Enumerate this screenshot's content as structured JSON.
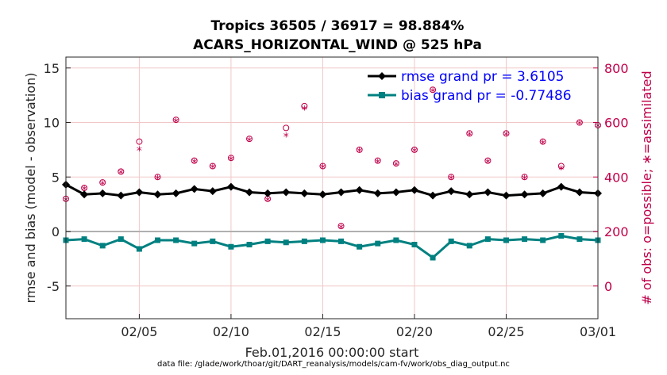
{
  "colors": {
    "rmse": "#000000",
    "bias": "#008080",
    "obs": "#c0004a",
    "legend_text": "#0000ff",
    "zero_line": "#b0b0b0",
    "grid": "#f2c7c7"
  },
  "chart_data": {
    "type": "line",
    "title_line1": "Tropics 36505 / 36917 = 98.884%",
    "title_line2": "ACARS_HORIZONTAL_WIND @ 525 hPa",
    "xlabel": "Feb.01,2016 00:00:00 start",
    "ylabel": "rmse and bias (model - observation)",
    "ylabel_right": "# of obs: o=possible; ∗=assimilated",
    "footnote": "data file: /glade/work/thoar/git/DART_reanalysis/models/cam-fv/work/obs_diag_output.nc",
    "xlim": [
      1,
      30
    ],
    "x_ticks": [
      5,
      10,
      15,
      20,
      25,
      30
    ],
    "x_tick_labels": [
      "02/05",
      "02/10",
      "02/15",
      "02/20",
      "02/25",
      "03/01"
    ],
    "ylim": [
      -8,
      16
    ],
    "y_ticks": [
      -5,
      0,
      5,
      10,
      15
    ],
    "y_tick_labels": [
      "-5",
      "0",
      "5",
      "10",
      "15"
    ],
    "ylim_right": [
      -120,
      840
    ],
    "y_ticks_right": [
      0,
      200,
      400,
      600,
      800
    ],
    "y_tick_labels_right": [
      "0",
      "200",
      "400",
      "600",
      "800"
    ],
    "legend": {
      "rmse": "rmse grand pr = 3.6105",
      "bias": "bias grand pr = -0.77486"
    },
    "series": [
      {
        "name": "rmse",
        "axis": "left",
        "x": [
          1.0,
          2.0,
          3.0,
          4.0,
          5.0,
          6.0,
          7.0,
          8.0,
          9.0,
          10.0,
          11.0,
          12.0,
          13.0,
          14.0,
          15.0,
          16.0,
          17.0,
          18.0,
          19.0,
          20.0,
          21.0,
          22.0,
          23.0,
          24.0,
          25.0,
          26.0,
          27.0,
          28.0,
          29.0,
          30.0
        ],
        "values": [
          4.3,
          3.4,
          3.5,
          3.3,
          3.6,
          3.4,
          3.5,
          3.9,
          3.7,
          4.1,
          3.6,
          3.5,
          3.6,
          3.5,
          3.4,
          3.6,
          3.8,
          3.5,
          3.6,
          3.8,
          3.3,
          3.7,
          3.4,
          3.6,
          3.3,
          3.4,
          3.5,
          4.1,
          3.6,
          3.5
        ]
      },
      {
        "name": "bias",
        "axis": "left",
        "x": [
          1.0,
          2.0,
          3.0,
          4.0,
          5.0,
          6.0,
          7.0,
          8.0,
          9.0,
          10.0,
          11.0,
          12.0,
          13.0,
          14.0,
          15.0,
          16.0,
          17.0,
          18.0,
          19.0,
          20.0,
          21.0,
          22.0,
          23.0,
          24.0,
          25.0,
          26.0,
          27.0,
          28.0,
          29.0,
          30.0
        ],
        "values": [
          -0.8,
          -0.7,
          -1.3,
          -0.7,
          -1.6,
          -0.8,
          -0.8,
          -1.1,
          -0.9,
          -1.4,
          -1.2,
          -0.9,
          -1.0,
          -0.9,
          -0.8,
          -0.9,
          -1.4,
          -1.1,
          -0.8,
          -1.2,
          -2.4,
          -0.9,
          -1.3,
          -0.7,
          -0.8,
          -0.7,
          -0.8,
          -0.4,
          -0.7,
          -0.8
        ]
      },
      {
        "name": "obs_possible",
        "axis": "right",
        "x": [
          1.0,
          2.0,
          3.0,
          4.0,
          5.0,
          6.0,
          7.0,
          8.0,
          9.0,
          10.0,
          11.0,
          12.0,
          13.0,
          14.0,
          15.0,
          16.0,
          17.0,
          18.0,
          19.0,
          20.0,
          21.0,
          22.0,
          23.0,
          24.0,
          25.0,
          26.0,
          27.0,
          28.0,
          29.0,
          30.0
        ],
        "values": [
          320,
          360,
          380,
          420,
          530,
          400,
          610,
          460,
          440,
          470,
          540,
          320,
          580,
          660,
          440,
          220,
          500,
          460,
          450,
          500,
          720,
          400,
          560,
          460,
          560,
          400,
          530,
          440,
          600,
          590
        ]
      },
      {
        "name": "obs_assimilated",
        "axis": "right",
        "x": [
          1.0,
          2.0,
          3.0,
          4.0,
          5.0,
          6.0,
          7.0,
          8.0,
          9.0,
          10.0,
          11.0,
          12.0,
          13.0,
          14.0,
          15.0,
          16.0,
          17.0,
          18.0,
          19.0,
          20.0,
          21.0,
          22.0,
          23.0,
          24.0,
          25.0,
          26.0,
          27.0,
          28.0,
          29.0,
          30.0
        ],
        "values": [
          315,
          355,
          375,
          415,
          500,
          395,
          605,
          455,
          435,
          465,
          535,
          315,
          550,
          650,
          435,
          215,
          495,
          455,
          445,
          495,
          715,
          395,
          555,
          455,
          555,
          395,
          525,
          430,
          595,
          585
        ]
      }
    ]
  }
}
